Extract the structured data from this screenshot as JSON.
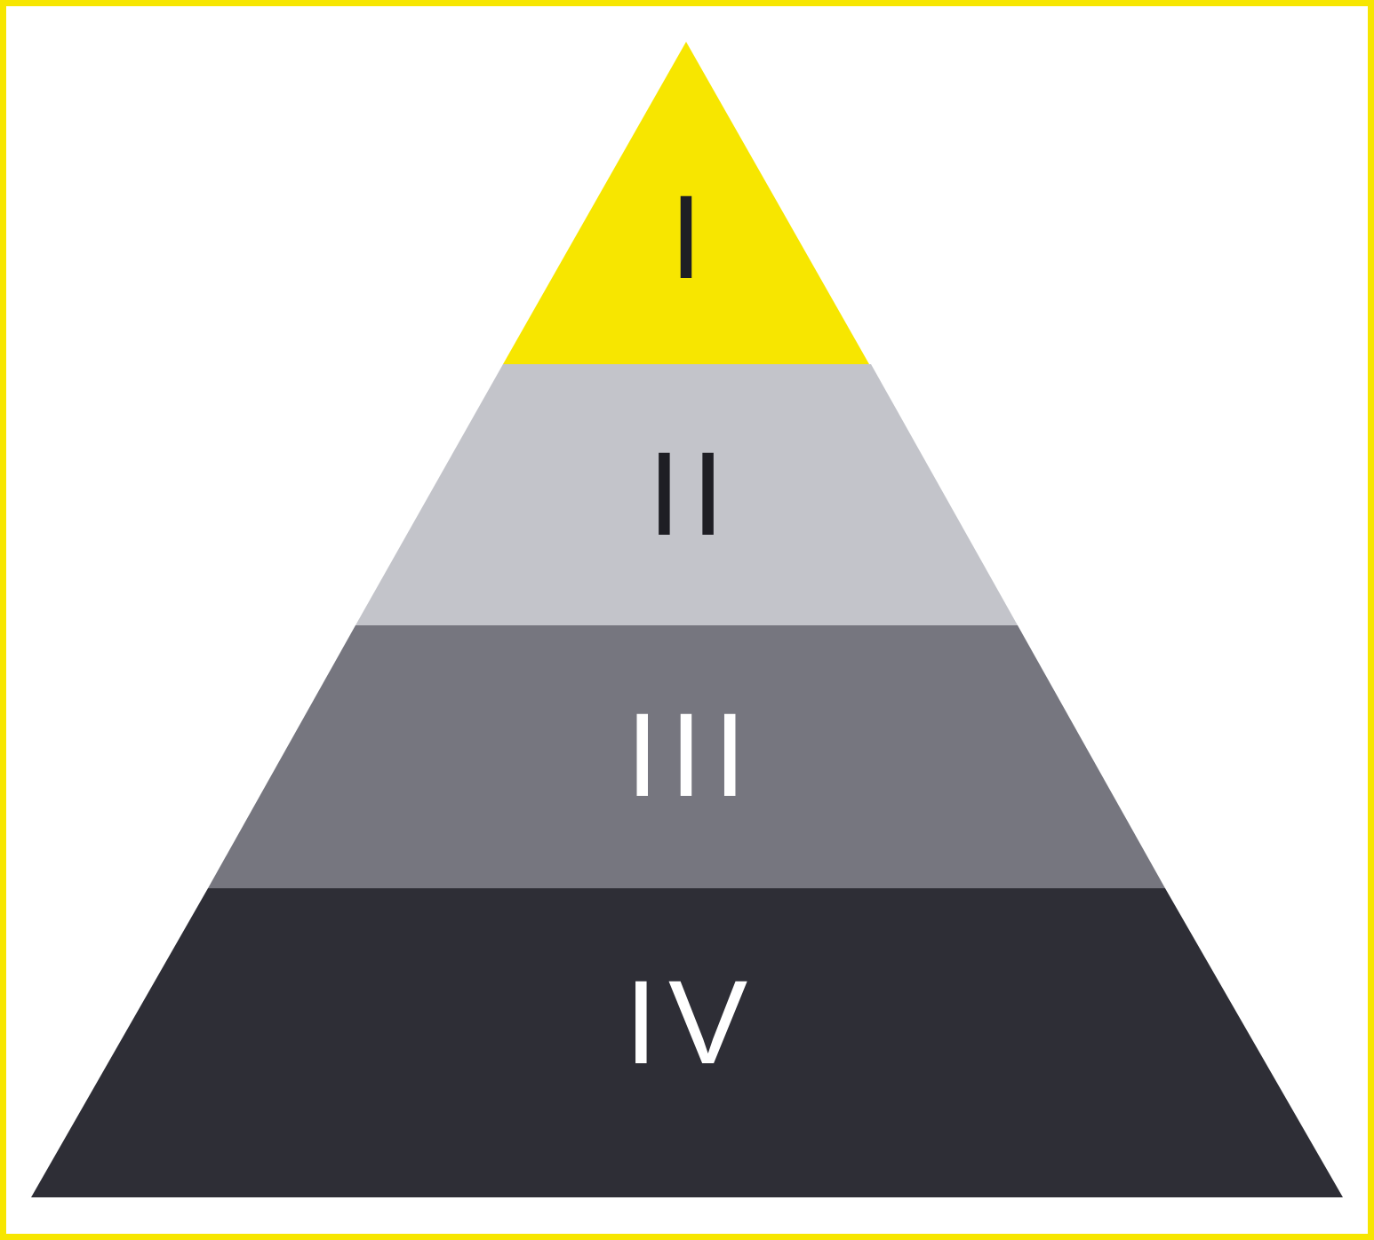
{
  "diagram": {
    "type": "pyramid",
    "frame_color": "#f7e600",
    "tiers": [
      {
        "label": "I",
        "fill": "#f7e600",
        "text_color": "#1e1e24"
      },
      {
        "label": "II",
        "fill": "#c3c4ca",
        "text_color": "#1e1e24"
      },
      {
        "label": "III",
        "fill": "#76767f",
        "text_color": "#ffffff"
      },
      {
        "label": "IV",
        "fill": "#2e2e36",
        "text_color": "#ffffff"
      }
    ]
  }
}
